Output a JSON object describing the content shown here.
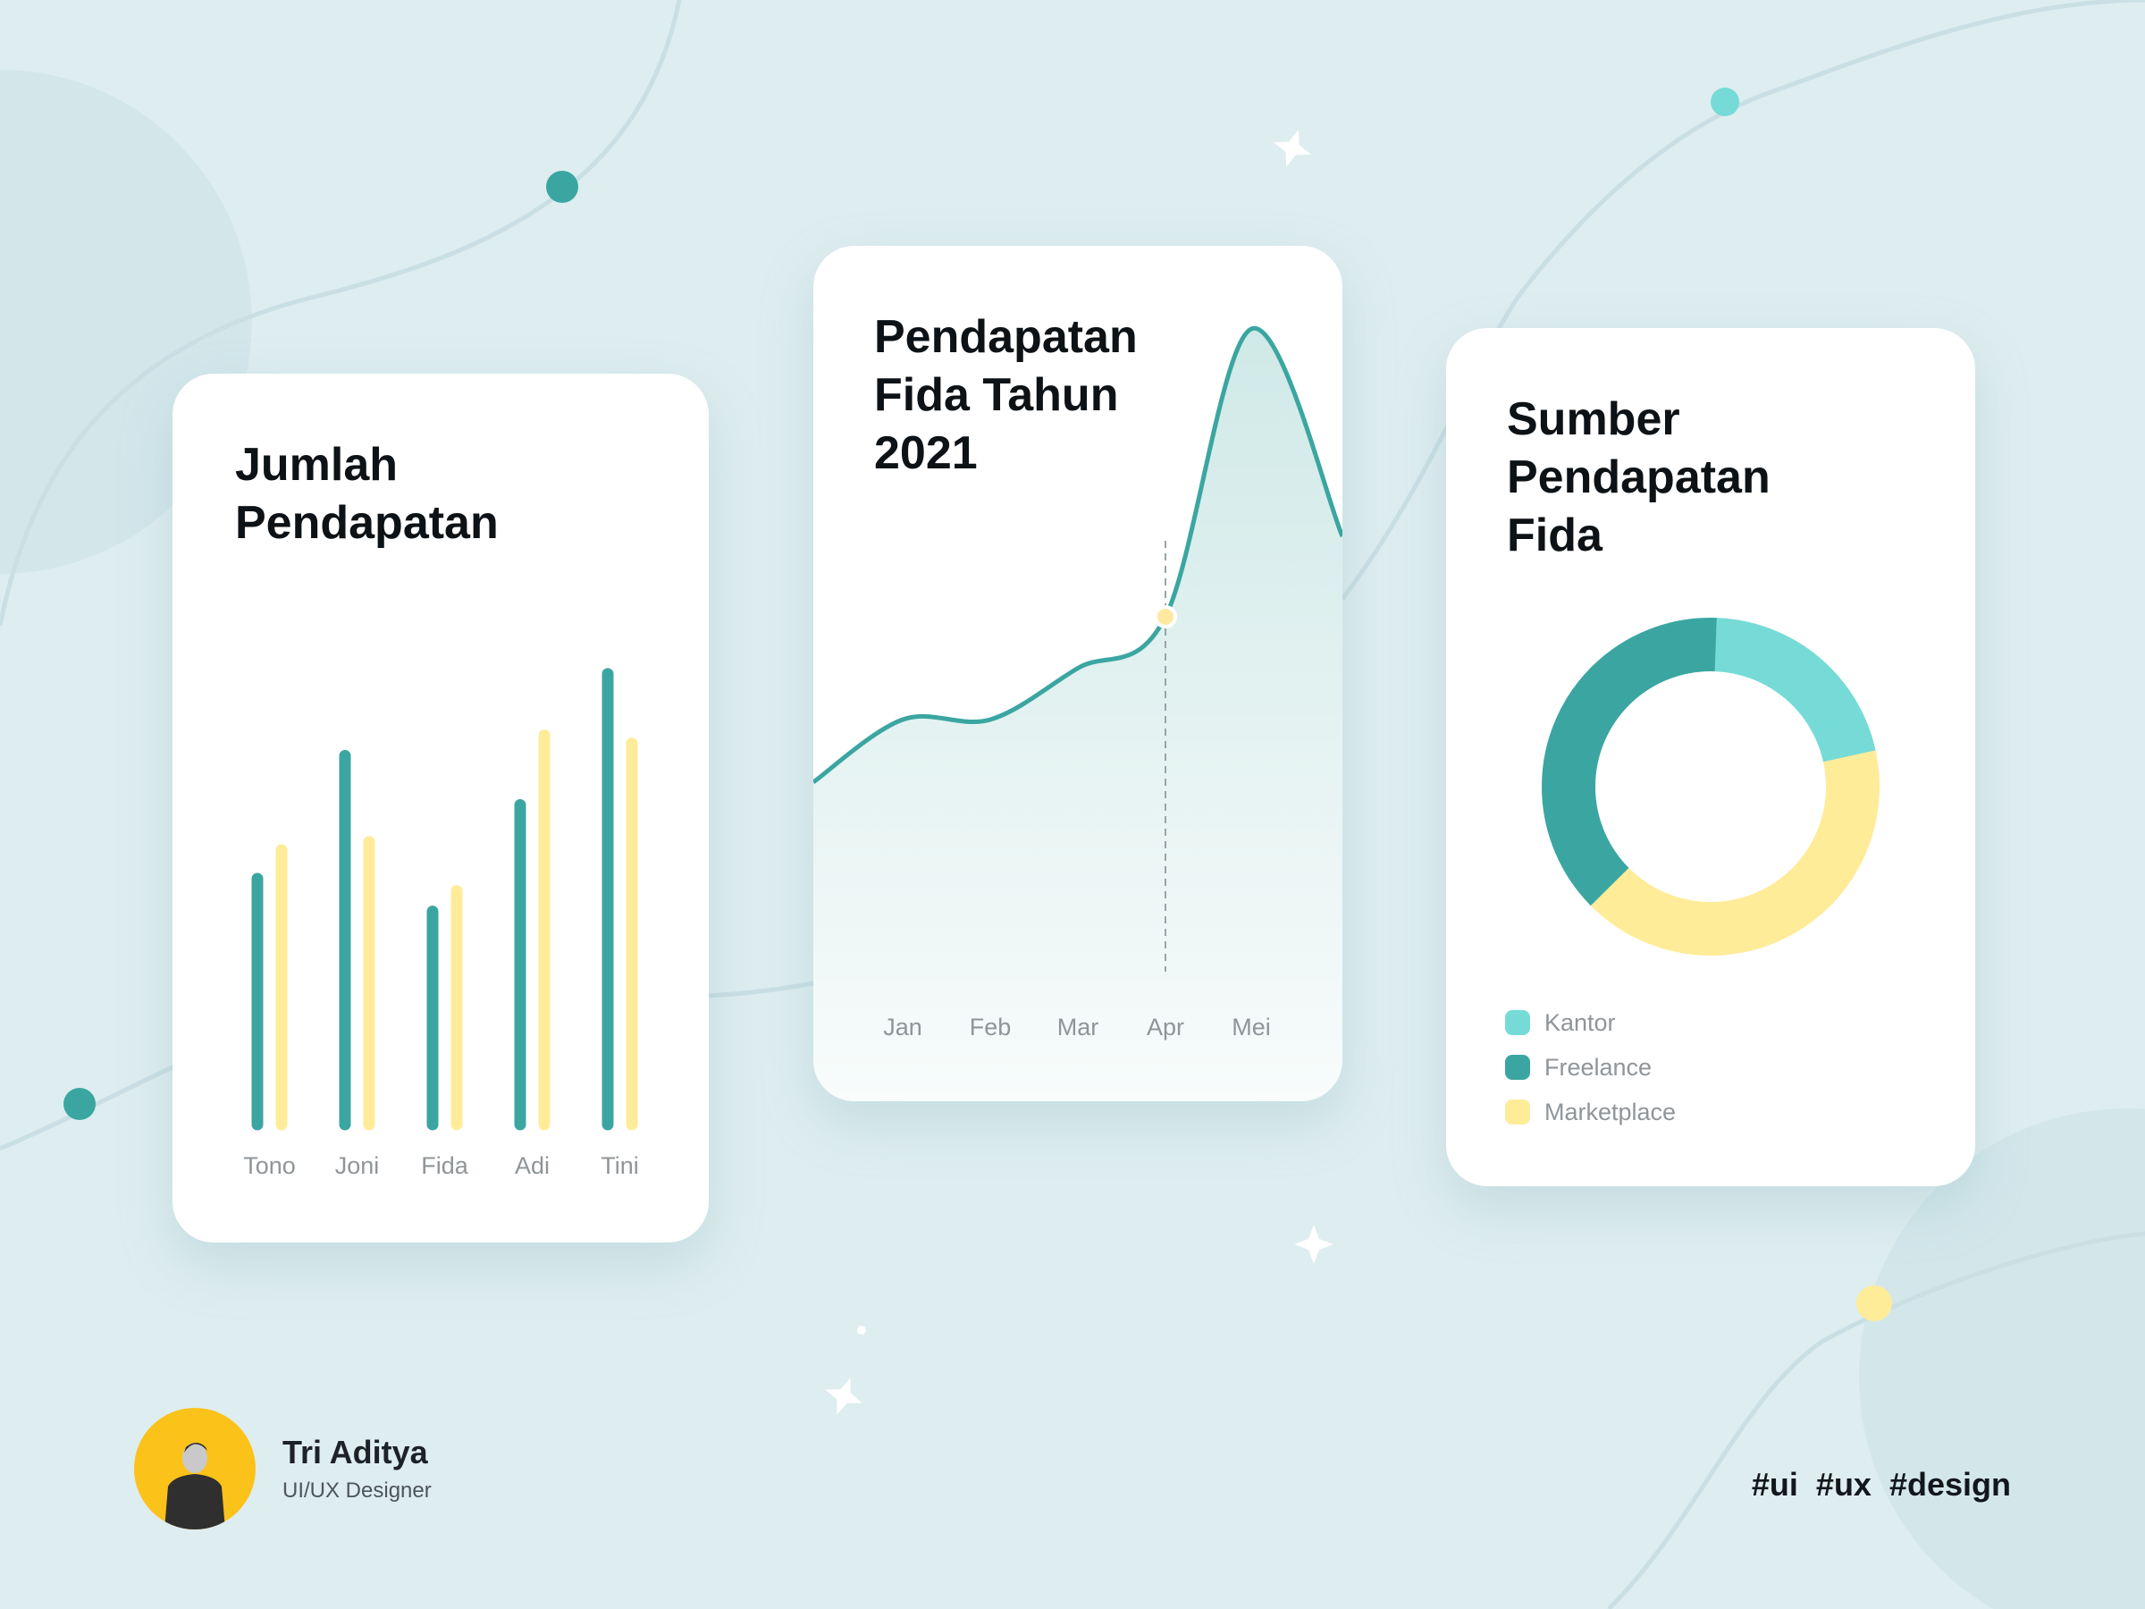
{
  "colors": {
    "teal": "#3ba6a1",
    "light_teal": "#76dbd6",
    "yellow": "#ffec99",
    "background": "#deedf0"
  },
  "chart_data": [
    {
      "type": "bar",
      "title": "Jumlah Pendapatan",
      "categories": [
        "Tono",
        "Joni",
        "Fida",
        "Adi",
        "Tini"
      ],
      "series": [
        {
          "color": "#3ba6a1",
          "values": [
            60,
            90,
            52,
            78,
            110
          ]
        },
        {
          "color": "#ffec99",
          "values": [
            67,
            69,
            57,
            95,
            93
          ]
        }
      ],
      "ylim": [
        0,
        120
      ],
      "grid": false
    },
    {
      "type": "area",
      "title": "Pendapatan Fida Tahun 2021",
      "x": [
        "Jan",
        "Feb",
        "Mar",
        "Apr",
        "Mei"
      ],
      "values": [
        30,
        30,
        35,
        40,
        68
      ],
      "ylim": [
        0,
        80
      ],
      "highlight": "Apr",
      "grid": false
    },
    {
      "type": "pie",
      "title": "Sumber Pendapatan Fida",
      "labels": [
        "Kantor",
        "Freelance",
        "Marketplace"
      ],
      "values": [
        21,
        38,
        41
      ],
      "colors": [
        "#76dbd6",
        "#3ba6a1",
        "#ffec99"
      ],
      "legend": "bottom-left"
    }
  ],
  "legend": [
    {
      "label": "Kantor",
      "color": "#76dbd6"
    },
    {
      "label": "Freelance",
      "color": "#3ba6a1"
    },
    {
      "label": "Marketplace",
      "color": "#ffec99"
    }
  ],
  "author": {
    "name": "Tri Aditya",
    "role": "UI/UX Designer"
  },
  "tags": "#ui  #ux  #design"
}
